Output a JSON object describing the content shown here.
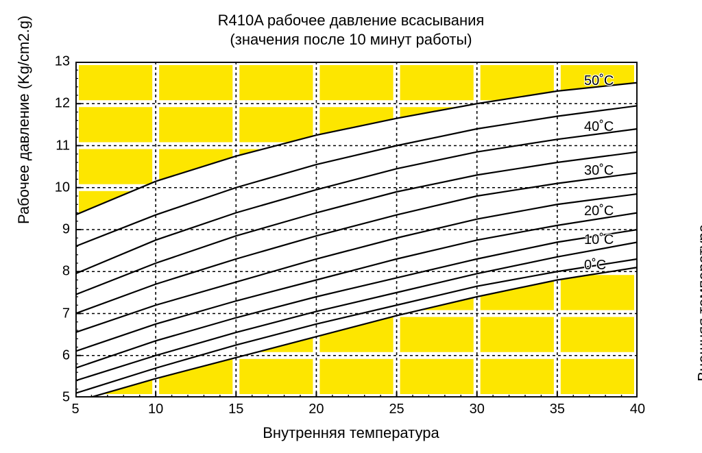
{
  "title_line1": "R410A рабочее давление всасывания",
  "title_line2": "(значения после 10 минут работы)",
  "ylabel_left": "Рабочее давление (Kg/cm2.g)",
  "ylabel_right": "Внешняя температура",
  "xlabel": "Внутренняя температура",
  "chart": {
    "type": "line",
    "xlim": [
      5,
      40
    ],
    "ylim": [
      5,
      13
    ],
    "xtick_step": 5,
    "ytick_step": 1,
    "xticks": [
      5,
      10,
      15,
      20,
      25,
      30,
      35,
      40
    ],
    "yticks": [
      5,
      6,
      7,
      8,
      9,
      10,
      11,
      12,
      13
    ],
    "minor_x_per_major": 5,
    "minor_y_per_major": 5,
    "background_color": "#ffffff",
    "yellow_color": "#fde600",
    "axis_color": "#000000",
    "grid_major_dash": "4,4",
    "grid_major_width": 1.6,
    "curve_color": "#000000",
    "curve_width": 2.2,
    "label_fontsize": 20,
    "title_fontsize": 22,
    "series": [
      {
        "label": "0˚C",
        "x": [
          5,
          10,
          15,
          20,
          25,
          30,
          35,
          40
        ],
        "y": [
          4.9,
          5.45,
          5.95,
          6.45,
          6.95,
          7.4,
          7.8,
          8.1
        ]
      },
      {
        "label": "",
        "x": [
          5,
          10,
          15,
          20,
          25,
          30,
          35,
          40
        ],
        "y": [
          5.1,
          5.7,
          6.25,
          6.75,
          7.2,
          7.65,
          8.0,
          8.3
        ]
      },
      {
        "label": "10˚C",
        "x": [
          5,
          10,
          15,
          20,
          25,
          30,
          35,
          40
        ],
        "y": [
          5.4,
          6.0,
          6.55,
          7.05,
          7.5,
          7.95,
          8.35,
          8.7
        ]
      },
      {
        "label": "",
        "x": [
          5,
          10,
          15,
          20,
          25,
          30,
          35,
          40
        ],
        "y": [
          5.7,
          6.35,
          6.9,
          7.4,
          7.85,
          8.3,
          8.7,
          9.0
        ]
      },
      {
        "label": "20˚C",
        "x": [
          5,
          10,
          15,
          20,
          25,
          30,
          35,
          40
        ],
        "y": [
          6.1,
          6.75,
          7.3,
          7.8,
          8.3,
          8.75,
          9.1,
          9.4
        ]
      },
      {
        "label": "",
        "x": [
          5,
          10,
          15,
          20,
          25,
          30,
          35,
          40
        ],
        "y": [
          6.55,
          7.2,
          7.75,
          8.3,
          8.8,
          9.25,
          9.6,
          9.85
        ]
      },
      {
        "label": "30˚C",
        "x": [
          5,
          10,
          15,
          20,
          25,
          30,
          35,
          40
        ],
        "y": [
          7.0,
          7.7,
          8.3,
          8.85,
          9.35,
          9.8,
          10.1,
          10.35
        ]
      },
      {
        "label": "",
        "x": [
          5,
          10,
          15,
          20,
          25,
          30,
          35,
          40
        ],
        "y": [
          7.45,
          8.2,
          8.85,
          9.4,
          9.9,
          10.3,
          10.6,
          10.85
        ]
      },
      {
        "label": "40˚C",
        "x": [
          5,
          10,
          15,
          20,
          25,
          30,
          35,
          40
        ],
        "y": [
          7.95,
          8.75,
          9.4,
          9.95,
          10.45,
          10.85,
          11.15,
          11.4
        ]
      },
      {
        "label": "",
        "x": [
          5,
          10,
          15,
          20,
          25,
          30,
          35,
          40
        ],
        "y": [
          8.6,
          9.35,
          10.0,
          10.55,
          11.0,
          11.4,
          11.7,
          11.95
        ]
      },
      {
        "label": "50˚C",
        "x": [
          5,
          10,
          15,
          20,
          25,
          30,
          35,
          40
        ],
        "y": [
          9.35,
          10.15,
          10.75,
          11.25,
          11.65,
          12.0,
          12.3,
          12.5
        ]
      }
    ],
    "yellow_top_boundary_series_index": 10,
    "yellow_bottom_boundary_series_index": 0
  }
}
